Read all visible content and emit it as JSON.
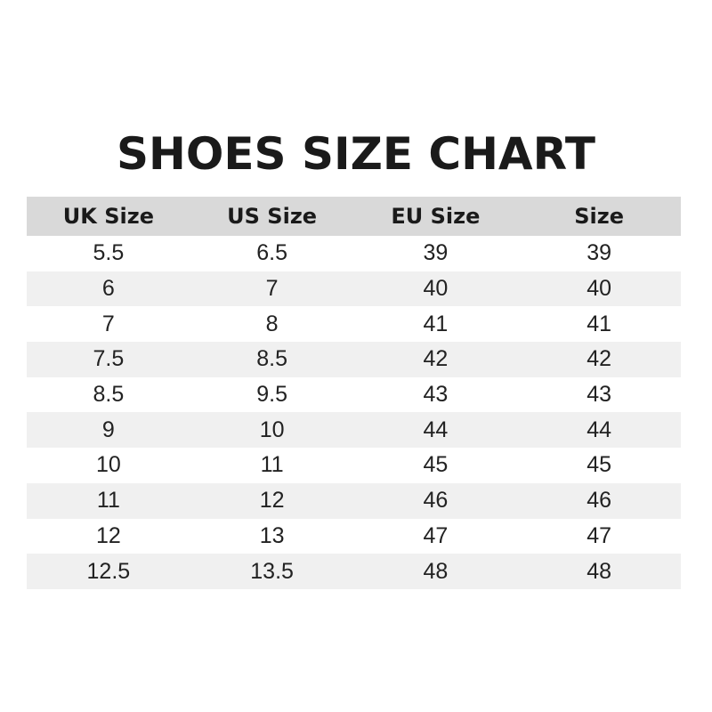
{
  "title": "SHOES SIZE CHART",
  "headers": [
    "UK Size",
    "US Size",
    "EU Size",
    "Size"
  ],
  "rows": [
    [
      "5.5",
      "6.5",
      "39",
      "39"
    ],
    [
      "6",
      "7",
      "40",
      "40"
    ],
    [
      "7",
      "8",
      "41",
      "41"
    ],
    [
      "7.5",
      "8.5",
      "42",
      "42"
    ],
    [
      "8.5",
      "9.5",
      "43",
      "43"
    ],
    [
      "9",
      "10",
      "44",
      "44"
    ],
    [
      "10",
      "11",
      "45",
      "45"
    ],
    [
      "11",
      "12",
      "46",
      "46"
    ],
    [
      "12",
      "13",
      "47",
      "47"
    ],
    [
      "12.5",
      "13.5",
      "48",
      "48"
    ]
  ]
}
